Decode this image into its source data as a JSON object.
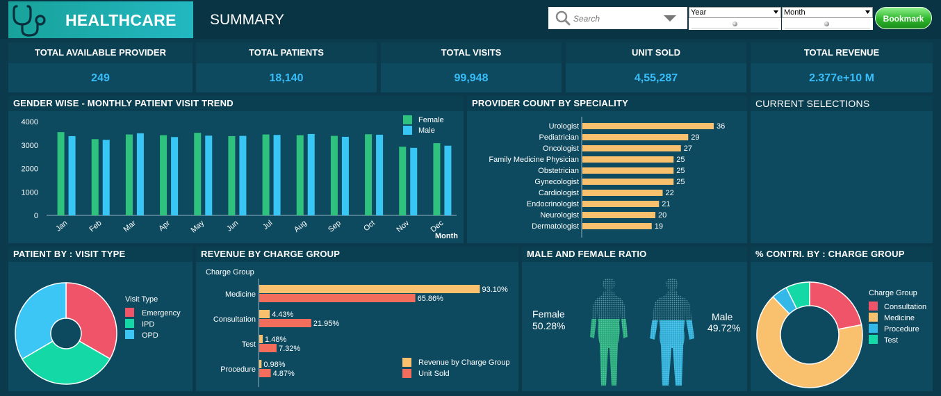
{
  "header": {
    "brand": "HEALTHCARE",
    "page_title": "SUMMARY",
    "search_placeholder": "Search",
    "year_label": "Year",
    "month_label": "Month",
    "bookmark_label": "Bookmark"
  },
  "kpis": [
    {
      "label": "TOTAL AVAILABLE PROVIDER",
      "value": "249"
    },
    {
      "label": "TOTAL PATIENTS",
      "value": "18,140"
    },
    {
      "label": "TOTAL VISITS",
      "value": "99,948"
    },
    {
      "label": "UNIT SOLD",
      "value": "4,55,287"
    },
    {
      "label": "TOTAL REVENUE",
      "value": "2.377e+10 M"
    }
  ],
  "panels": {
    "trend": "GENDER WISE - MONTHLY PATIENT VISIT TREND",
    "provider": "PROVIDER COUNT BY SPECIALITY",
    "selections": "CURRENT SELECTIONS",
    "visit_type": "PATIENT BY :  VISIT TYPE",
    "revenue": "REVENUE BY CHARGE GROUP",
    "ratio": "MALE AND FEMALE RATIO",
    "contri": "% CONTRI. BY :  CHARGE GROUP"
  },
  "ratio": {
    "female_label": "Female",
    "female_value": "50.28%",
    "male_label": "Male",
    "male_value": "49.72%"
  },
  "colors": {
    "female": "#2ec27e",
    "male": "#38c6f4",
    "provider_bar": "#f9c06d",
    "emergency": "#f05469",
    "ipd": "#14d9a6",
    "opd": "#3cc6f5",
    "revenue_bar": "#f9c06d",
    "unit_bar": "#f26d5b",
    "consultation": "#f05469",
    "medicine": "#f9c06d",
    "procedure": "#33b8e8",
    "test": "#14d9a6"
  },
  "chart_data": [
    {
      "type": "bar",
      "categories": [
        "Jan",
        "Feb",
        "Mar",
        "Apr",
        "May",
        "Jun",
        "Jul",
        "Aug",
        "Sep",
        "Oct",
        "Nov",
        "Dec"
      ],
      "series": [
        {
          "name": "Female",
          "values": [
            3550,
            3250,
            3450,
            3420,
            3520,
            3380,
            3450,
            3420,
            3390,
            3460,
            2930,
            3080
          ]
        },
        {
          "name": "Male",
          "values": [
            3380,
            3220,
            3500,
            3340,
            3400,
            3390,
            3430,
            3470,
            3350,
            3440,
            2880,
            2970
          ]
        }
      ],
      "xlabel": "Month",
      "ylim": [
        0,
        4000
      ],
      "yticks": [
        "0",
        "1000",
        "2000",
        "3000",
        "4000"
      ],
      "legend": "top-right"
    },
    {
      "type": "bar",
      "orientation": "horizontal",
      "categories": [
        "Urologist",
        "Pediatrician",
        "Oncologist",
        "Family Medicine Physician",
        "Obstetrician",
        "Gynecologist",
        "Cardiologist",
        "Endocrinologist",
        "Neurologist",
        "Dermatologist"
      ],
      "values": [
        36,
        29,
        27,
        25,
        25,
        25,
        22,
        21,
        20,
        19
      ],
      "labels": [
        "36",
        "29",
        "27",
        "25",
        "25",
        "25",
        "22",
        "21",
        "20",
        "19"
      ],
      "xlim": [
        0,
        40
      ]
    },
    {
      "type": "pie",
      "variant": "donut",
      "legend_title": "Visit Type",
      "categories": [
        "Emergency",
        "IPD",
        "OPD"
      ],
      "values": [
        33.3,
        33.3,
        33.4
      ],
      "legend": "right"
    },
    {
      "type": "bar",
      "orientation": "horizontal",
      "axis_title": "Charge Group",
      "categories": [
        "Medicine",
        "Consultation",
        "Test",
        "Procedure"
      ],
      "series": [
        {
          "name": "Revenue by Charge Group",
          "values": [
            93.1,
            4.43,
            1.48,
            0.98
          ],
          "labels": [
            "93.10%",
            "4.43%",
            "1.48%",
            "0.98%"
          ]
        },
        {
          "name": "Unit Sold",
          "values": [
            65.86,
            21.95,
            7.32,
            4.87
          ],
          "labels": [
            "65.86%",
            "21.95%",
            "7.32%",
            "4.87%"
          ]
        }
      ],
      "xlim": [
        0,
        100
      ],
      "legend": "bottom-right"
    },
    {
      "type": "pie",
      "variant": "donut",
      "legend_title": "Charge Group",
      "categories": [
        "Consultation",
        "Medicine",
        "Procedure",
        "Test"
      ],
      "values": [
        21.95,
        65.86,
        4.87,
        7.32
      ],
      "legend": "right"
    }
  ]
}
